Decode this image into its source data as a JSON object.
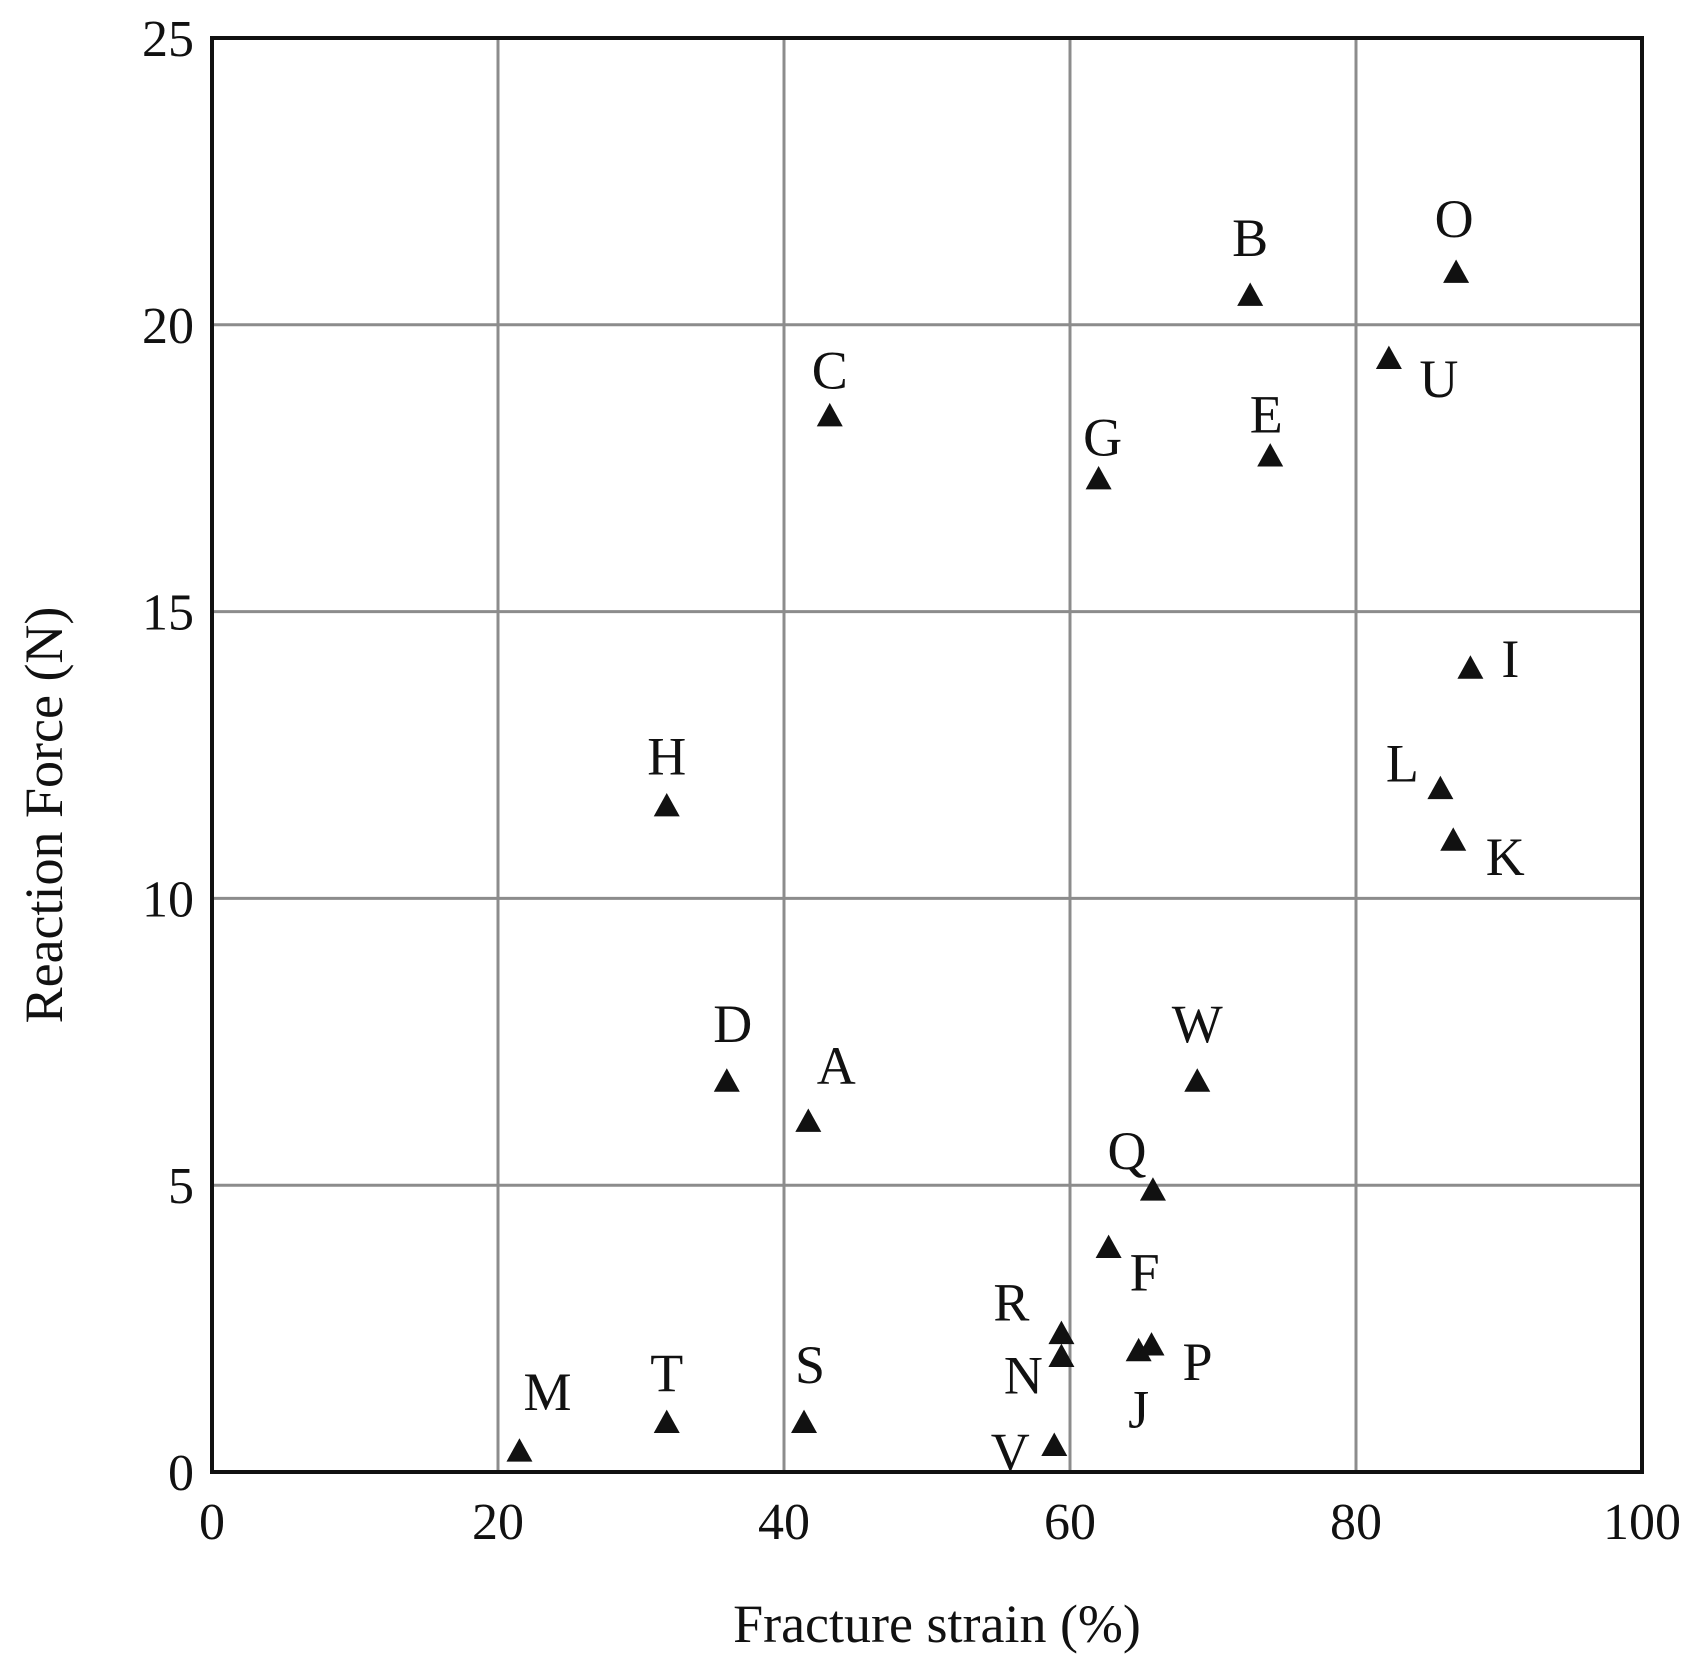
{
  "chart_data": {
    "type": "scatter",
    "title": "",
    "xlabel": "Fracture strain (%)",
    "ylabel": "Reaction Force (N)",
    "xlim": [
      0,
      100
    ],
    "ylim": [
      0,
      25
    ],
    "x_ticks": [
      0,
      20,
      40,
      60,
      80,
      100
    ],
    "y_ticks": [
      0,
      5,
      10,
      15,
      20,
      25
    ],
    "grid": true,
    "marker": "triangle-up",
    "marker_color": "#111111",
    "grid_color": "#8c8c8c",
    "points": [
      {
        "label": "A",
        "x": 41.7,
        "y": 6.1
      },
      {
        "label": "B",
        "x": 72.6,
        "y": 20.5
      },
      {
        "label": "C",
        "x": 43.2,
        "y": 18.4
      },
      {
        "label": "D",
        "x": 36.0,
        "y": 6.8
      },
      {
        "label": "E",
        "x": 74.0,
        "y": 17.7
      },
      {
        "label": "F",
        "x": 62.7,
        "y": 3.9
      },
      {
        "label": "G",
        "x": 62.0,
        "y": 17.3
      },
      {
        "label": "H",
        "x": 31.8,
        "y": 11.6
      },
      {
        "label": "I",
        "x": 88.0,
        "y": 14.0
      },
      {
        "label": "J",
        "x": 64.8,
        "y": 2.1
      },
      {
        "label": "K",
        "x": 86.8,
        "y": 11.0
      },
      {
        "label": "L",
        "x": 85.9,
        "y": 11.9
      },
      {
        "label": "M",
        "x": 21.5,
        "y": 0.35
      },
      {
        "label": "N",
        "x": 59.4,
        "y": 2.0
      },
      {
        "label": "O",
        "x": 87.0,
        "y": 20.9
      },
      {
        "label": "P",
        "x": 65.7,
        "y": 2.2
      },
      {
        "label": "Q",
        "x": 65.8,
        "y": 4.9
      },
      {
        "label": "R",
        "x": 59.4,
        "y": 2.4
      },
      {
        "label": "S",
        "x": 41.4,
        "y": 0.85
      },
      {
        "label": "T",
        "x": 31.8,
        "y": 0.85
      },
      {
        "label": "U",
        "x": 82.3,
        "y": 19.4
      },
      {
        "label": "V",
        "x": 58.9,
        "y": 0.45
      },
      {
        "label": "W",
        "x": 68.9,
        "y": 6.8
      }
    ]
  }
}
